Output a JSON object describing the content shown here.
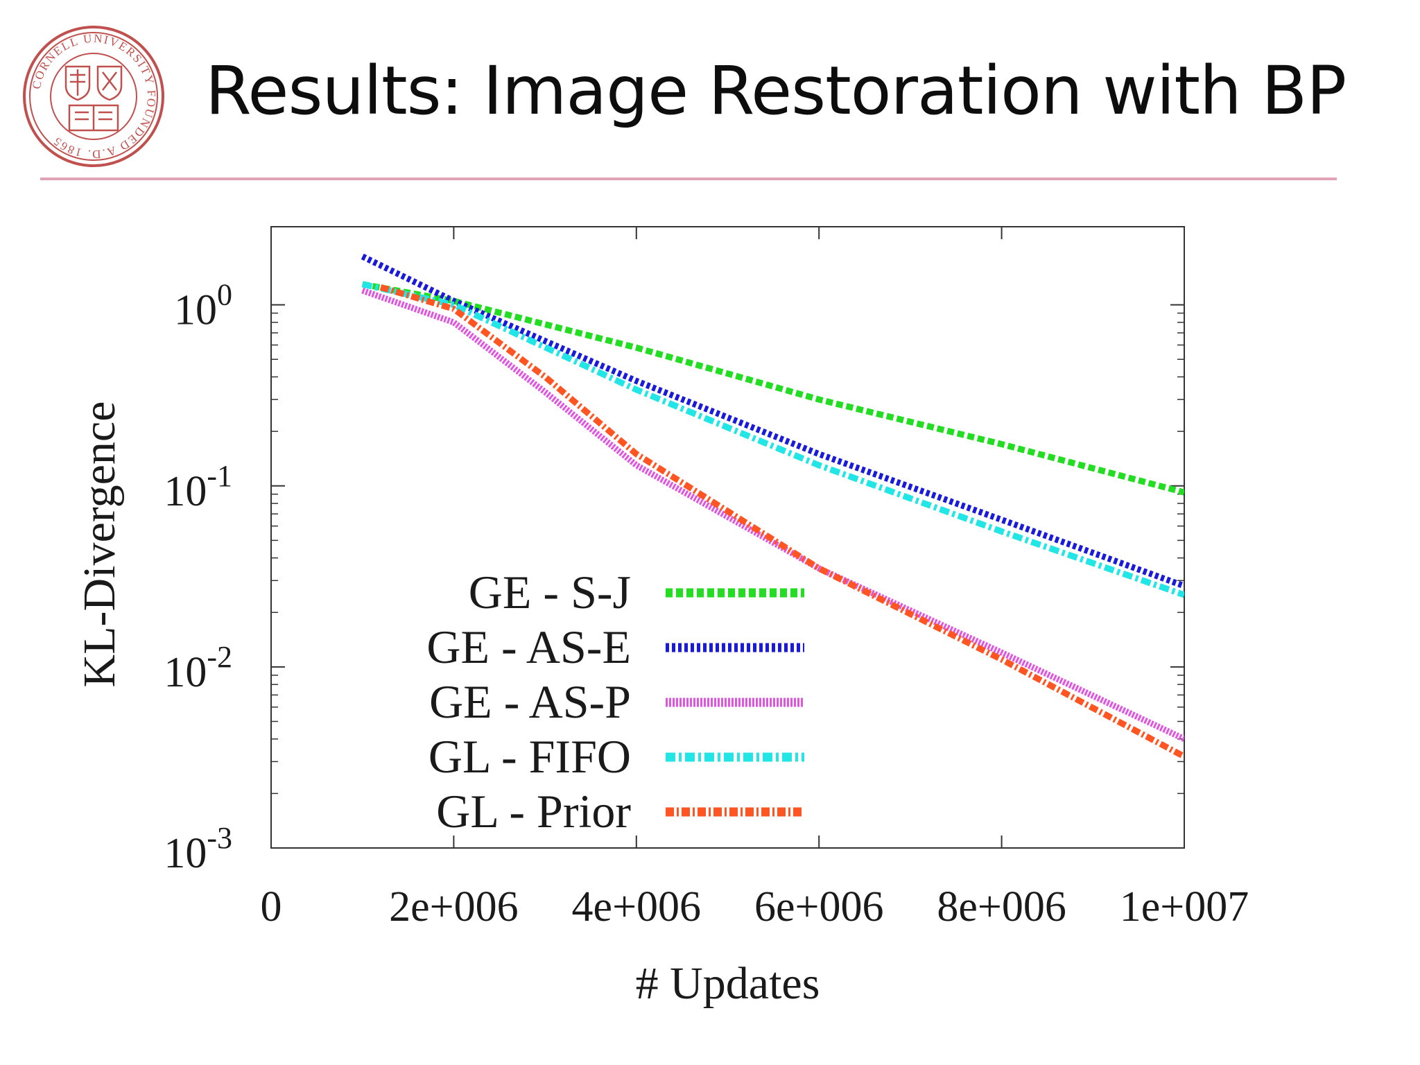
{
  "slide": {
    "title": "Results: Image Restoration with BP",
    "logo": {
      "name": "cornell-seal",
      "text": "CORNELL UNIVERSITY FOUNDED A.D. 1865",
      "color": "#c0504d"
    },
    "rule_color": "#e0a4b6"
  },
  "chart_data": {
    "type": "line",
    "title": "",
    "xlabel": "# Updates",
    "ylabel": "KL-Divergence",
    "xlim": [
      0,
      10000000
    ],
    "ylim": [
      0.001,
      2.7
    ],
    "yscale": "log",
    "grid": false,
    "legend_position": "bottom-left",
    "x_ticks": [
      {
        "value": 0,
        "label": "0"
      },
      {
        "value": 2000000,
        "label": "2e+006"
      },
      {
        "value": 4000000,
        "label": "4e+006"
      },
      {
        "value": 6000000,
        "label": "6e+006"
      },
      {
        "value": 8000000,
        "label": "8e+006"
      },
      {
        "value": 10000000,
        "label": "1e+007"
      }
    ],
    "y_ticks": [
      {
        "value": 1,
        "base": "10",
        "exp": "0"
      },
      {
        "value": 0.1,
        "base": "10",
        "exp": "-1"
      },
      {
        "value": 0.01,
        "base": "10",
        "exp": "-2"
      },
      {
        "value": 0.001,
        "base": "10",
        "exp": "-3"
      }
    ],
    "series": [
      {
        "name": "GE - S-J",
        "color": "#22dd22",
        "dash": "10,5",
        "x": [
          1000000,
          2000000,
          4000000,
          6000000,
          8000000,
          10000000
        ],
        "y": [
          1.3,
          1.05,
          0.58,
          0.3,
          0.17,
          0.092
        ]
      },
      {
        "name": "GE - AS-E",
        "color": "#1a1adb",
        "dash": "5,4",
        "x": [
          1000000,
          2000000,
          4000000,
          6000000,
          8000000,
          10000000
        ],
        "y": [
          1.85,
          1.05,
          0.38,
          0.15,
          0.065,
          0.028
        ]
      },
      {
        "name": "GE - AS-P",
        "color": "#e055e0",
        "dash": "3,2",
        "x": [
          1000000,
          2000000,
          3000000,
          4000000,
          6000000,
          8000000,
          10000000
        ],
        "y": [
          1.2,
          0.8,
          0.33,
          0.13,
          0.035,
          0.012,
          0.004
        ]
      },
      {
        "name": "GL - FIFO",
        "color": "#22e5e5",
        "dash": "14,5,4,5",
        "x": [
          1000000,
          2000000,
          4000000,
          6000000,
          8000000,
          10000000
        ],
        "y": [
          1.3,
          1.0,
          0.34,
          0.13,
          0.056,
          0.025
        ]
      },
      {
        "name": "GL - Prior",
        "color": "#ff5522",
        "dash": "12,4,3,4",
        "x": [
          1200000,
          2000000,
          3000000,
          4000000,
          6000000,
          8000000,
          10000000
        ],
        "y": [
          1.25,
          0.95,
          0.4,
          0.15,
          0.035,
          0.011,
          0.0032
        ]
      }
    ]
  }
}
